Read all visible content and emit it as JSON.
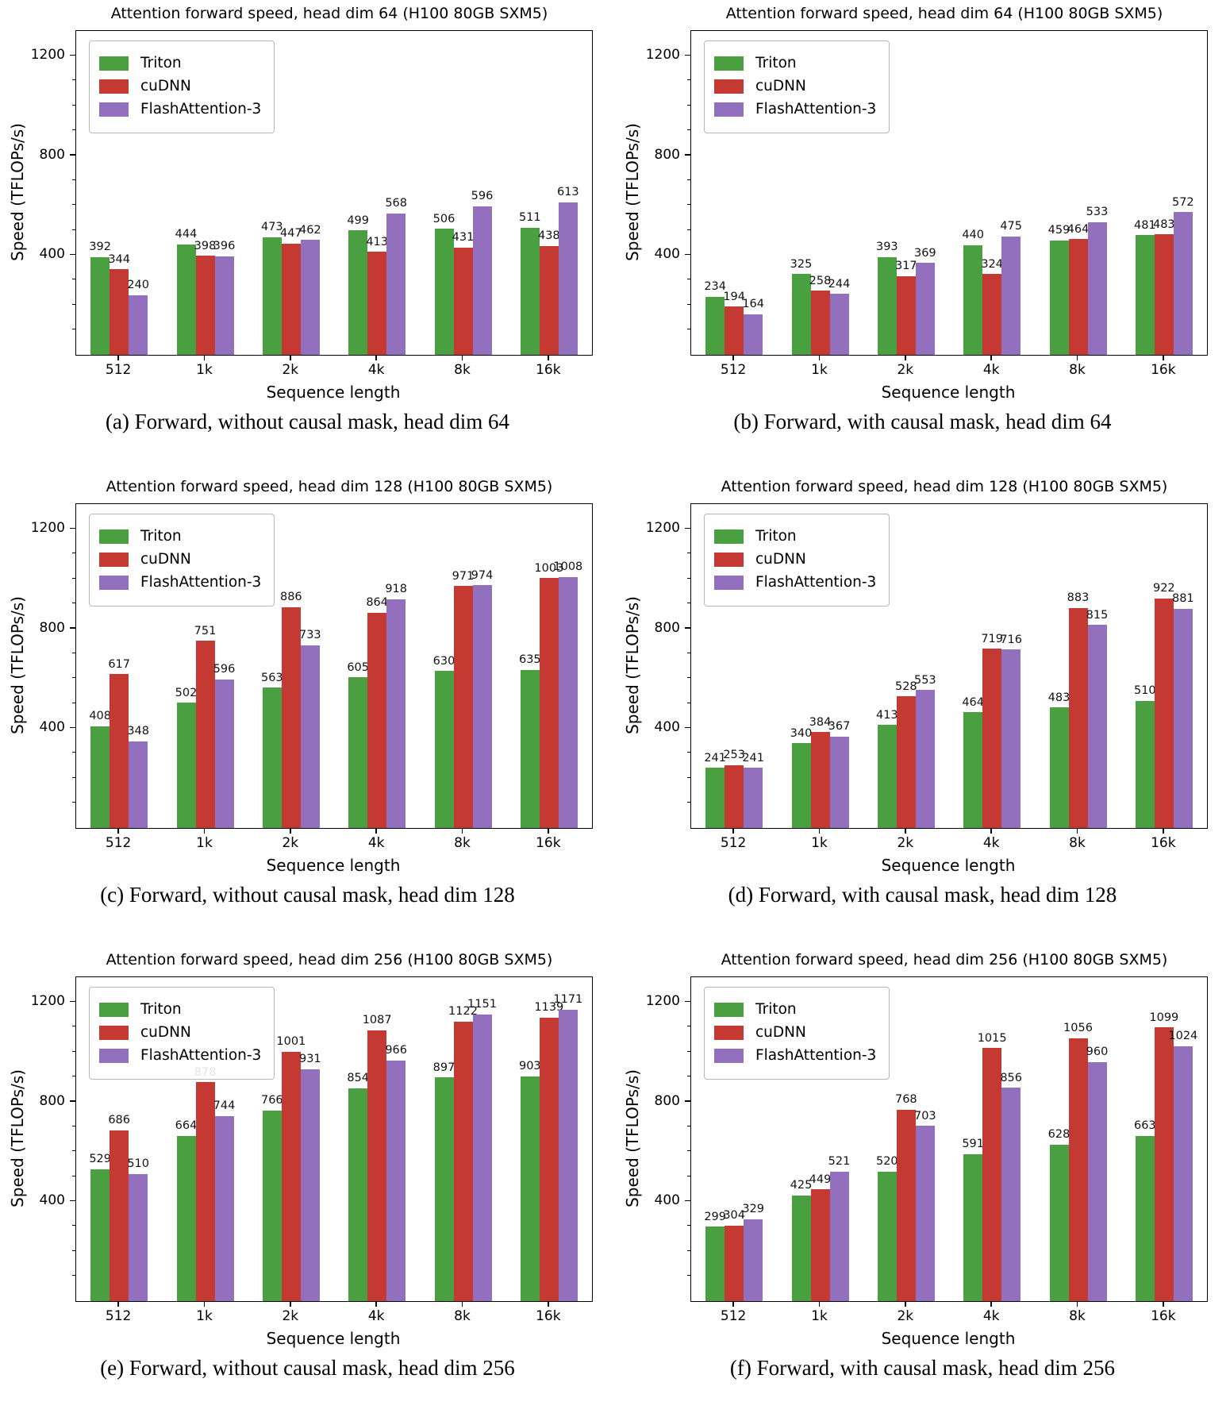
{
  "figure": {
    "xlabel": "Sequence length",
    "ylabel": "Speed (TFLOPs/s)",
    "categories": [
      "512",
      "1k",
      "2k",
      "4k",
      "8k",
      "16k"
    ],
    "yticks": [
      400,
      800,
      1200
    ],
    "minor_ticks": [
      100,
      200,
      300,
      500,
      600,
      700,
      900,
      1000,
      1100
    ],
    "ylim": [
      0,
      1300
    ],
    "legend": [
      "Triton",
      "cuDNN",
      "FlashAttention-3"
    ],
    "colors": {
      "Triton": "#4aa041",
      "cuDNN": "#c43a32",
      "FlashAttention-3": "#9370bd"
    }
  },
  "chart_data": [
    {
      "id": "a",
      "type": "bar",
      "title": "Attention forward speed, head dim 64 (H100 80GB SXM5)",
      "caption": "(a) Forward, without causal mask, head dim 64",
      "xlabel": "Sequence length",
      "ylabel": "Speed (TFLOPs/s)",
      "categories": [
        "512",
        "1k",
        "2k",
        "4k",
        "8k",
        "16k"
      ],
      "ylim": [
        0,
        1300
      ],
      "series": [
        {
          "name": "Triton",
          "values": [
            392,
            444,
            473,
            499,
            506,
            511
          ]
        },
        {
          "name": "cuDNN",
          "values": [
            344,
            398,
            447,
            413,
            431,
            438
          ]
        },
        {
          "name": "FlashAttention-3",
          "values": [
            240,
            396,
            462,
            568,
            596,
            613
          ]
        }
      ]
    },
    {
      "id": "b",
      "type": "bar",
      "title": "Attention forward speed, head dim 64 (H100 80GB SXM5)",
      "caption": "(b) Forward, with causal mask, head dim 64",
      "xlabel": "Sequence length",
      "ylabel": "Speed (TFLOPs/s)",
      "categories": [
        "512",
        "1k",
        "2k",
        "4k",
        "8k",
        "16k"
      ],
      "ylim": [
        0,
        1300
      ],
      "series": [
        {
          "name": "Triton",
          "values": [
            234,
            325,
            393,
            440,
            459,
            481
          ]
        },
        {
          "name": "cuDNN",
          "values": [
            194,
            258,
            317,
            324,
            464,
            483
          ]
        },
        {
          "name": "FlashAttention-3",
          "values": [
            164,
            244,
            369,
            475,
            533,
            572
          ]
        }
      ]
    },
    {
      "id": "c",
      "type": "bar",
      "title": "Attention forward speed, head dim 128 (H100 80GB SXM5)",
      "caption": "(c) Forward, without causal mask, head dim 128",
      "xlabel": "Sequence length",
      "ylabel": "Speed (TFLOPs/s)",
      "categories": [
        "512",
        "1k",
        "2k",
        "4k",
        "8k",
        "16k"
      ],
      "ylim": [
        0,
        1300
      ],
      "series": [
        {
          "name": "Triton",
          "values": [
            408,
            502,
            563,
            605,
            630,
            635
          ]
        },
        {
          "name": "cuDNN",
          "values": [
            617,
            751,
            886,
            864,
            971,
            1003
          ]
        },
        {
          "name": "FlashAttention-3",
          "values": [
            348,
            596,
            733,
            918,
            974,
            1008
          ]
        }
      ]
    },
    {
      "id": "d",
      "type": "bar",
      "title": "Attention forward speed, head dim 128 (H100 80GB SXM5)",
      "caption": "(d) Forward, with causal mask, head dim 128",
      "xlabel": "Sequence length",
      "ylabel": "Speed (TFLOPs/s)",
      "categories": [
        "512",
        "1k",
        "2k",
        "4k",
        "8k",
        "16k"
      ],
      "ylim": [
        0,
        1300
      ],
      "series": [
        {
          "name": "Triton",
          "values": [
            241,
            340,
            413,
            464,
            483,
            510
          ]
        },
        {
          "name": "cuDNN",
          "values": [
            253,
            384,
            528,
            719,
            883,
            922
          ]
        },
        {
          "name": "FlashAttention-3",
          "values": [
            241,
            367,
            553,
            716,
            815,
            881
          ]
        }
      ]
    },
    {
      "id": "e",
      "type": "bar",
      "title": "Attention forward speed, head dim 256 (H100 80GB SXM5)",
      "caption": "(e) Forward, without causal mask, head dim 256",
      "xlabel": "Sequence length",
      "ylabel": "Speed (TFLOPs/s)",
      "categories": [
        "512",
        "1k",
        "2k",
        "4k",
        "8k",
        "16k"
      ],
      "ylim": [
        0,
        1300
      ],
      "series": [
        {
          "name": "Triton",
          "values": [
            529,
            664,
            766,
            854,
            897,
            903
          ]
        },
        {
          "name": "cuDNN",
          "values": [
            686,
            878,
            1001,
            1087,
            1122,
            1139
          ]
        },
        {
          "name": "FlashAttention-3",
          "values": [
            510,
            744,
            931,
            966,
            1151,
            1171
          ]
        }
      ]
    },
    {
      "id": "f",
      "type": "bar",
      "title": "Attention forward speed, head dim 256 (H100 80GB SXM5)",
      "caption": "(f) Forward, with causal mask, head dim 256",
      "xlabel": "Sequence length",
      "ylabel": "Speed (TFLOPs/s)",
      "categories": [
        "512",
        "1k",
        "2k",
        "4k",
        "8k",
        "16k"
      ],
      "ylim": [
        0,
        1300
      ],
      "series": [
        {
          "name": "Triton",
          "values": [
            299,
            425,
            520,
            591,
            628,
            663
          ]
        },
        {
          "name": "cuDNN",
          "values": [
            304,
            449,
            768,
            1015,
            1056,
            1099
          ]
        },
        {
          "name": "FlashAttention-3",
          "values": [
            329,
            521,
            703,
            856,
            960,
            1024
          ]
        }
      ]
    }
  ]
}
